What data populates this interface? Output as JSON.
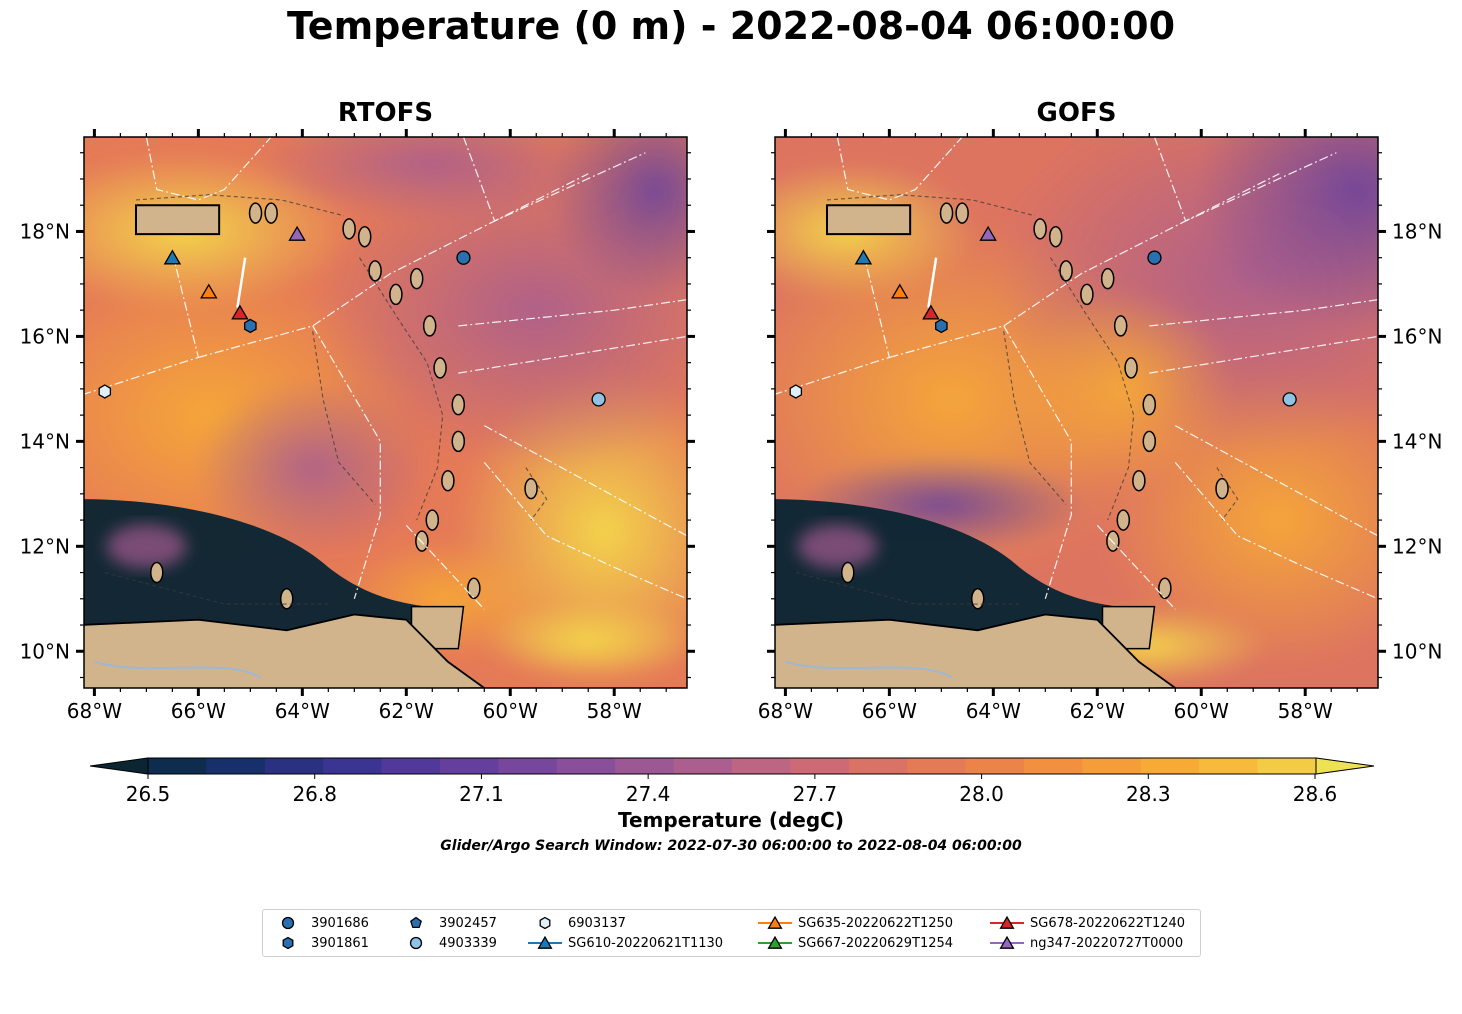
{
  "title": "Temperature (0 m) - 2022-08-04 06:00:00",
  "panels": [
    {
      "title": "RTOFS",
      "variant": "rtofs"
    },
    {
      "title": "GOFS",
      "variant": "gofs"
    }
  ],
  "axes": {
    "lon_range": [
      -68.2,
      -56.6
    ],
    "lat_range": [
      9.3,
      19.8
    ],
    "lon_ticks": [
      {
        "value": -68,
        "label": "68°W"
      },
      {
        "value": -66,
        "label": "66°W"
      },
      {
        "value": -64,
        "label": "64°W"
      },
      {
        "value": -62,
        "label": "62°W"
      },
      {
        "value": -60,
        "label": "60°W"
      },
      {
        "value": -58,
        "label": "58°W"
      }
    ],
    "lat_ticks": [
      {
        "value": 10,
        "label": "10°N"
      },
      {
        "value": 12,
        "label": "12°N"
      },
      {
        "value": 14,
        "label": "14°N"
      },
      {
        "value": 16,
        "label": "16°N"
      },
      {
        "value": 18,
        "label": "18°N"
      }
    ]
  },
  "colorbar": {
    "label": "Temperature (degC)",
    "min": 26.4,
    "max": 28.7,
    "ticks": [
      "26.5",
      "26.8",
      "27.1",
      "27.4",
      "27.7",
      "28.0",
      "28.3",
      "28.6"
    ],
    "tick_values": [
      26.5,
      26.8,
      27.1,
      27.4,
      27.7,
      28.0,
      28.3,
      28.6
    ],
    "colors": [
      "#0b2533",
      "#0e2d4e",
      "#172f6b",
      "#2a3180",
      "#3b3492",
      "#51389b",
      "#643f9d",
      "#76479d",
      "#8a4f9a",
      "#9b5895",
      "#ac5f8e",
      "#bd6583",
      "#cd6a76",
      "#db7266",
      "#e57a57",
      "#ec844a",
      "#f2903f",
      "#f59d38",
      "#f7ab35",
      "#f7ba3a",
      "#f4cb45",
      "#eee254"
    ]
  },
  "search_window": "Glider/Argo Search Window: 2022-07-30 06:00:00 to 2022-08-04 06:00:00",
  "markers": [
    {
      "name": "3901686",
      "type": "argo",
      "shape": "circle",
      "color": "#2a70b0",
      "lon": -60.9,
      "lat": 17.5
    },
    {
      "name": "3901861",
      "type": "argo",
      "shape": "hexagon",
      "color": "#2a70b0",
      "lon": -65.0,
      "lat": 16.2
    },
    {
      "name": "3902457",
      "type": "argo",
      "shape": "pentagon",
      "color": "#2a70b0",
      "lon": -65.0,
      "lat": 16.2
    },
    {
      "name": "4903339",
      "type": "argo",
      "shape": "circle",
      "color": "#8ec3e6",
      "lon": -58.3,
      "lat": 14.8
    },
    {
      "name": "6903137",
      "type": "argo",
      "shape": "hexagon",
      "color": "#dff0fa",
      "lon": -67.8,
      "lat": 14.95
    },
    {
      "name": "SG610-20220621T1130",
      "type": "glider",
      "shape": "triangle",
      "color": "#1f77b4",
      "lon": -66.5,
      "lat": 17.5
    },
    {
      "name": "SG635-20220622T1250",
      "type": "glider",
      "shape": "triangle",
      "color": "#ff7f0e",
      "lon": -65.8,
      "lat": 16.85
    },
    {
      "name": "SG667-20220629T1254",
      "type": "glider",
      "shape": "triangle",
      "color": "#2ca02c",
      "lon": -65.8,
      "lat": 16.85
    },
    {
      "name": "SG678-20220622T1240",
      "type": "glider",
      "shape": "triangle",
      "color": "#d62728",
      "lon": -65.2,
      "lat": 16.45
    },
    {
      "name": "ng347-20220727T0000",
      "type": "glider",
      "shape": "triangle",
      "color": "#9467bd",
      "lon": -64.1,
      "lat": 17.95
    }
  ]
}
